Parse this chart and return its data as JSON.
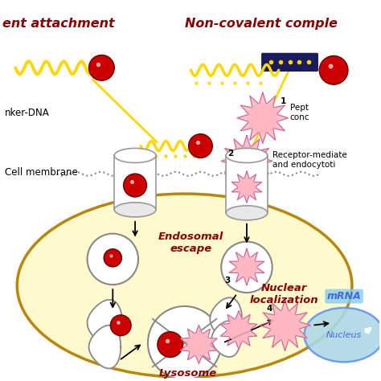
{
  "title_left": "ent attachment",
  "title_right": "Non-covalent comple",
  "title_color": "#8B0000",
  "bg_color": "#ffffff",
  "cell_color": "#FFFACD",
  "cell_edge_color": "#B8860B",
  "nucleus_color": "#ADD8E6",
  "nucleus_edge_color": "#6495ED",
  "linker_dna_label": "nker-DNA",
  "cell_membrane_label": "Cell membrane",
  "endosomal_escape_label": "Endosomal\nescape",
  "nuclear_localization_label": "Nuclear\nlocalization",
  "mrna_label": "mRNA",
  "nucleus_label": "Nucleus",
  "lysosome_label": "Lysosome",
  "receptor_label": "Receptor-mediate\nand endocytoti",
  "peptide_label": "Pept\nconc",
  "label_color": "#8B0000",
  "arrow_color": "#000000",
  "dna_color": "#FFD700",
  "dark_blue": "#1a1a5e",
  "pink_color": "#FFB6C1",
  "pink_fill": "#F08080",
  "red_color": "#CC0000",
  "number_1": "1",
  "number_2": "2",
  "number_3": "3",
  "number_4": "4"
}
